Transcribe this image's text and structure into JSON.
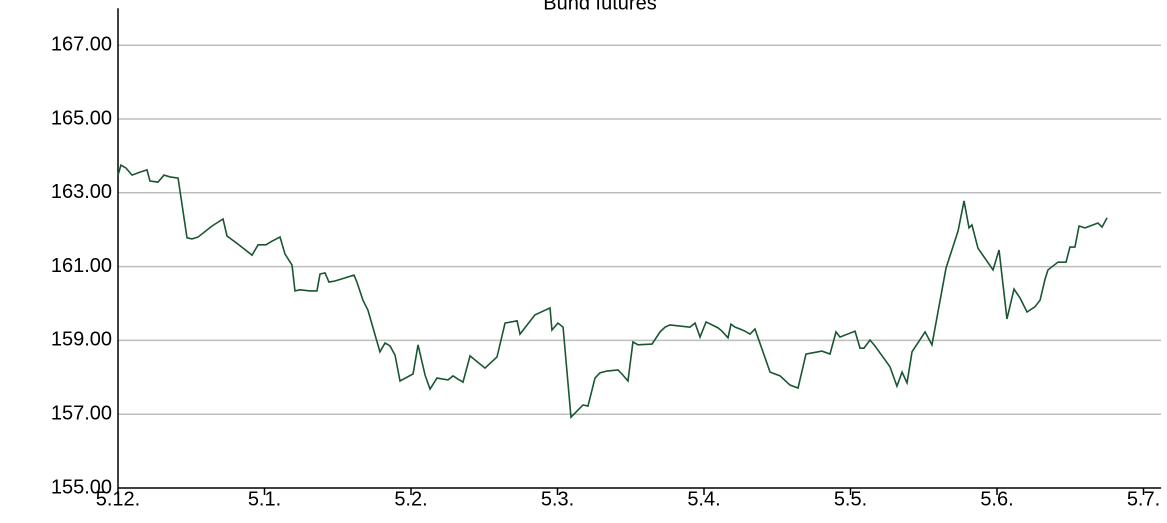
{
  "chart_data": {
    "type": "line",
    "title": "Bund futures",
    "x": [
      0.0,
      0.02,
      0.055,
      0.096,
      0.15,
      0.198,
      0.218,
      0.273,
      0.314,
      0.355,
      0.41,
      0.471,
      0.505,
      0.546,
      0.642,
      0.717,
      0.744,
      0.819,
      0.915,
      0.956,
      1.01,
      1.051,
      1.106,
      1.14,
      1.188,
      1.208,
      1.242,
      1.311,
      1.358,
      1.379,
      1.413,
      1.44,
      1.481,
      1.611,
      1.631,
      1.672,
      1.706,
      1.788,
      1.823,
      1.857,
      1.891,
      1.925,
      2.014,
      2.048,
      2.096,
      2.13,
      2.177,
      2.253,
      2.287,
      2.321,
      2.355,
      2.403,
      2.505,
      2.587,
      2.642,
      2.724,
      2.744,
      2.846,
      2.949,
      2.962,
      3.003,
      3.038,
      3.092,
      3.174,
      3.208,
      3.256,
      3.29,
      3.338,
      3.413,
      3.44,
      3.481,
      3.515,
      3.549,
      3.645,
      3.7,
      3.734,
      3.768,
      3.904,
      3.939,
      3.973,
      4.014,
      4.096,
      4.123,
      4.164,
      4.184,
      4.212,
      4.246,
      4.28,
      4.314,
      4.348,
      4.369,
      4.451,
      4.519,
      4.587,
      4.642,
      4.696,
      4.805,
      4.86,
      4.901,
      4.928,
      5.031,
      5.065,
      5.092,
      5.133,
      5.167,
      5.27,
      5.317,
      5.352,
      5.386,
      5.42,
      5.509,
      5.556,
      5.652,
      5.734,
      5.775,
      5.809,
      5.829,
      5.87,
      5.973,
      6.014,
      6.068,
      6.116,
      6.157,
      6.205,
      6.259,
      6.294,
      6.328,
      6.348,
      6.416,
      6.471,
      6.498,
      6.532,
      6.56,
      6.601,
      6.689,
      6.717,
      6.751
    ],
    "series": [
      {
        "name": "Bund futures",
        "color": "#1a5632",
        "values": [
          163.48,
          163.75,
          163.67,
          163.48,
          163.56,
          163.62,
          163.32,
          163.29,
          163.48,
          163.43,
          163.4,
          161.78,
          161.75,
          161.8,
          162.1,
          162.29,
          161.83,
          161.61,
          161.31,
          161.59,
          161.59,
          161.69,
          161.8,
          161.34,
          161.04,
          160.34,
          160.37,
          160.34,
          160.34,
          160.8,
          160.83,
          160.58,
          160.61,
          160.77,
          160.58,
          160.09,
          159.82,
          158.69,
          158.93,
          158.85,
          158.6,
          157.9,
          158.09,
          158.88,
          158.06,
          157.68,
          157.98,
          157.93,
          158.04,
          157.95,
          157.87,
          158.58,
          158.25,
          158.55,
          159.47,
          159.53,
          159.17,
          159.69,
          159.88,
          159.28,
          159.47,
          159.36,
          156.92,
          157.25,
          157.22,
          157.98,
          158.12,
          158.17,
          158.2,
          158.09,
          157.9,
          158.96,
          158.88,
          158.9,
          159.23,
          159.36,
          159.42,
          159.36,
          159.47,
          159.09,
          159.5,
          159.34,
          159.25,
          159.07,
          159.44,
          159.36,
          159.31,
          159.25,
          159.17,
          159.31,
          159.07,
          158.14,
          158.04,
          157.79,
          157.71,
          158.63,
          158.71,
          158.63,
          159.23,
          159.09,
          159.25,
          158.79,
          158.79,
          159.01,
          158.85,
          158.28,
          157.76,
          158.14,
          157.85,
          158.69,
          159.23,
          158.88,
          160.96,
          161.96,
          162.78,
          162.05,
          162.13,
          161.5,
          160.91,
          161.45,
          159.58,
          160.39,
          160.15,
          159.77,
          159.91,
          160.09,
          160.66,
          160.91,
          161.12,
          161.12,
          161.53,
          161.53,
          162.1,
          162.05,
          162.18,
          162.07,
          162.32
        ]
      }
    ],
    "xlim": [
      0,
      7.12
    ],
    "xticks": [
      {
        "value": 0,
        "label": "5.12."
      },
      {
        "value": 1,
        "label": "5.1."
      },
      {
        "value": 2,
        "label": "5.2."
      },
      {
        "value": 3,
        "label": "5.3."
      },
      {
        "value": 4,
        "label": "5.4."
      },
      {
        "value": 5,
        "label": "5.5."
      },
      {
        "value": 6,
        "label": "5.6."
      },
      {
        "value": 7,
        "label": "5.7."
      }
    ],
    "ylim": [
      155,
      168
    ],
    "yticks": [
      {
        "value": 155,
        "label": "155.00"
      },
      {
        "value": 157,
        "label": "157.00"
      },
      {
        "value": 159,
        "label": "159.00"
      },
      {
        "value": 161,
        "label": "161.00"
      },
      {
        "value": 163,
        "label": "163.00"
      },
      {
        "value": 165,
        "label": "165.00"
      },
      {
        "value": 167,
        "label": "167.00"
      }
    ],
    "grid": true
  }
}
